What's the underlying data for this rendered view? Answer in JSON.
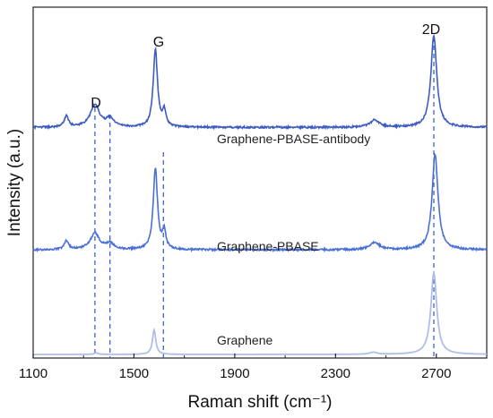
{
  "chart_data": {
    "type": "line",
    "xlabel": "Raman shift (cm⁻¹)",
    "ylabel": "Intensity (a.u.)",
    "xlim": [
      1100,
      2900
    ],
    "x_ticks": [
      "1100",
      "1500",
      "1900",
      "2300",
      "2700"
    ],
    "x_tick_values": [
      1100,
      1500,
      1900,
      2300,
      2700
    ],
    "y_ticks_shown": false,
    "legend": "none (series labels placed next to each trace)",
    "series": [
      {
        "name": "Graphene",
        "color": "#b0bde8",
        "offset": 0,
        "peaks": [
          {
            "x": 1350,
            "width": 10,
            "height": 0.03
          },
          {
            "x": 1580,
            "width": 8,
            "height": 0.48
          },
          {
            "x": 2450,
            "width": 18,
            "height": 0.04
          },
          {
            "x": 2690,
            "width": 14,
            "height": 1.6
          }
        ]
      },
      {
        "name": "Graphene-PBASE",
        "color": "#4a70d6",
        "offset": 2.05,
        "peaks": [
          {
            "x": 1232,
            "width": 10,
            "height": 0.18
          },
          {
            "x": 1345,
            "width": 22,
            "height": 0.32
          },
          {
            "x": 1405,
            "width": 18,
            "height": 0.12
          },
          {
            "x": 1585,
            "width": 10,
            "height": 1.6
          },
          {
            "x": 1620,
            "width": 8,
            "height": 0.35
          },
          {
            "x": 2455,
            "width": 22,
            "height": 0.15
          },
          {
            "x": 2695,
            "width": 14,
            "height": 1.87
          }
        ]
      },
      {
        "name": "Graphene-PBASE-antibody",
        "color": "#3e5cc0",
        "offset": 4.45,
        "peaks": [
          {
            "x": 1232,
            "width": 10,
            "height": 0.22
          },
          {
            "x": 1345,
            "width": 22,
            "height": 0.44
          },
          {
            "x": 1405,
            "width": 18,
            "height": 0.16
          },
          {
            "x": 1585,
            "width": 10,
            "height": 1.53
          },
          {
            "x": 1620,
            "width": 8,
            "height": 0.3
          },
          {
            "x": 2455,
            "width": 22,
            "height": 0.14
          },
          {
            "x": 2690,
            "width": 14,
            "height": 1.8
          }
        ]
      }
    ],
    "peak_labels": [
      "D",
      "G",
      "2D"
    ],
    "reference_lines_x": [
      1345,
      1405,
      1617,
      2690
    ]
  }
}
